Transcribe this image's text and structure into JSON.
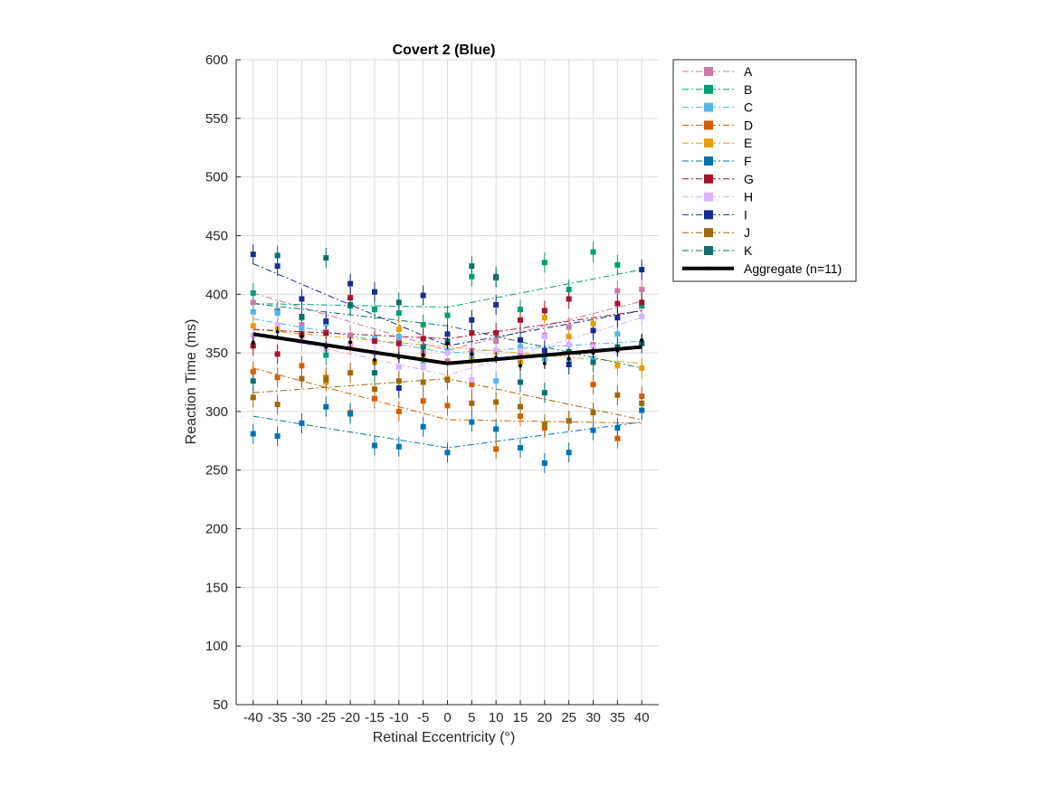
{
  "chart_data": {
    "type": "line",
    "title": "Covert 2 (Blue)",
    "xlabel": "Retinal Eccentricity (°)",
    "ylabel": "Reaction Time (ms)",
    "xlim": [
      -43.5,
      43.5
    ],
    "ylim": [
      50,
      600
    ],
    "xticks": [
      -40,
      -35,
      -30,
      -25,
      -20,
      -15,
      -10,
      -5,
      0,
      5,
      10,
      15,
      20,
      25,
      30,
      35,
      40
    ],
    "yticks": [
      50,
      100,
      150,
      200,
      250,
      300,
      350,
      400,
      450,
      500,
      550,
      600
    ],
    "grid": true,
    "legend_position": "outside-top-right",
    "x": [
      -40,
      -35,
      -30,
      -25,
      -20,
      -15,
      -10,
      -5,
      0,
      5,
      10,
      15,
      20,
      25,
      30,
      35,
      40
    ],
    "series": [
      {
        "name": "A",
        "color": "#CC79A7",
        "values": [
          393,
          386,
          374,
          368,
          365,
          362,
          360,
          350,
          343,
          352,
          360,
          350,
          365,
          372,
          357,
          403,
          404
        ],
        "fit": [
          401,
          352,
          394
        ]
      },
      {
        "name": "B",
        "color": "#009E73",
        "values": [
          401,
          385,
          380,
          348,
          390,
          387,
          384,
          374,
          382,
          415,
          414,
          387,
          427,
          404,
          436,
          425,
          390
        ],
        "fit": [
          392,
          389,
          421
        ]
      },
      {
        "name": "C",
        "color": "#56B4E9",
        "values": [
          385,
          384,
          371,
          375,
          358,
          362,
          364,
          343,
          352,
          348,
          326,
          355,
          345,
          343,
          345,
          366,
          358
        ],
        "fit": [
          379,
          350,
          360
        ]
      },
      {
        "name": "D",
        "color": "#D55E00",
        "values": [
          334,
          329,
          339,
          329,
          299,
          311,
          300,
          309,
          305,
          323,
          268,
          296,
          286,
          292,
          323,
          277,
          313
        ],
        "fit": [
          337,
          293,
          290
        ]
      },
      {
        "name": "E",
        "color": "#E69F00",
        "values": [
          373,
          372,
          365,
          325,
          357,
          342,
          370,
          345,
          328,
          344,
          351,
          342,
          380,
          364,
          375,
          339,
          337
        ],
        "fit": [
          370,
          355,
          341
        ]
      },
      {
        "name": "F",
        "color": "#0072B2",
        "values": [
          281,
          279,
          290,
          304,
          298,
          271,
          270,
          287,
          265,
          291,
          285,
          269,
          256,
          265,
          284,
          286,
          301
        ],
        "fit": [
          296,
          269,
          291
        ]
      },
      {
        "name": "G",
        "color": "#A2142F",
        "values": [
          356,
          349,
          366,
          367,
          397,
          360,
          358,
          362,
          359,
          367,
          367,
          378,
          386,
          396,
          369,
          392,
          393
        ],
        "fit": [
          370,
          362,
          386
        ]
      },
      {
        "name": "H",
        "color": "#D9B3FF",
        "values": [
          365,
          374,
          360,
          353,
          358,
          350,
          338,
          338,
          350,
          327,
          352,
          352,
          364,
          357,
          355,
          352,
          381
        ],
        "fit": [
          367,
          331,
          380
        ]
      },
      {
        "name": "I",
        "color": "#1B2B8F",
        "values": [
          434,
          424,
          396,
          377,
          409,
          402,
          320,
          399,
          366,
          378,
          391,
          361,
          352,
          340,
          369,
          380,
          421
        ],
        "fit": [
          426,
          356,
          386
        ]
      },
      {
        "name": "J",
        "color": "#9C6A0E",
        "values": [
          312,
          306,
          328,
          327,
          333,
          319,
          326,
          325,
          327,
          307,
          308,
          304,
          289,
          292,
          299,
          314,
          307
        ],
        "fit": [
          316,
          328,
          293
        ]
      },
      {
        "name": "K",
        "color": "#0F6E6A",
        "values": [
          326,
          433,
          381,
          431,
          391,
          333,
          393,
          355,
          360,
          424,
          415,
          325,
          316,
          351,
          342,
          355,
          358
        ],
        "fit": [
          392,
          373,
          337
        ]
      }
    ],
    "aggregate": {
      "name": "Aggregate (n=11)",
      "color": "#000000",
      "values": [
        359,
        368,
        364,
        355,
        359,
        344,
        346,
        348,
        358,
        349,
        346,
        339,
        341,
        345,
        350,
        352,
        361
      ],
      "fit": [
        366,
        341,
        355
      ]
    }
  }
}
